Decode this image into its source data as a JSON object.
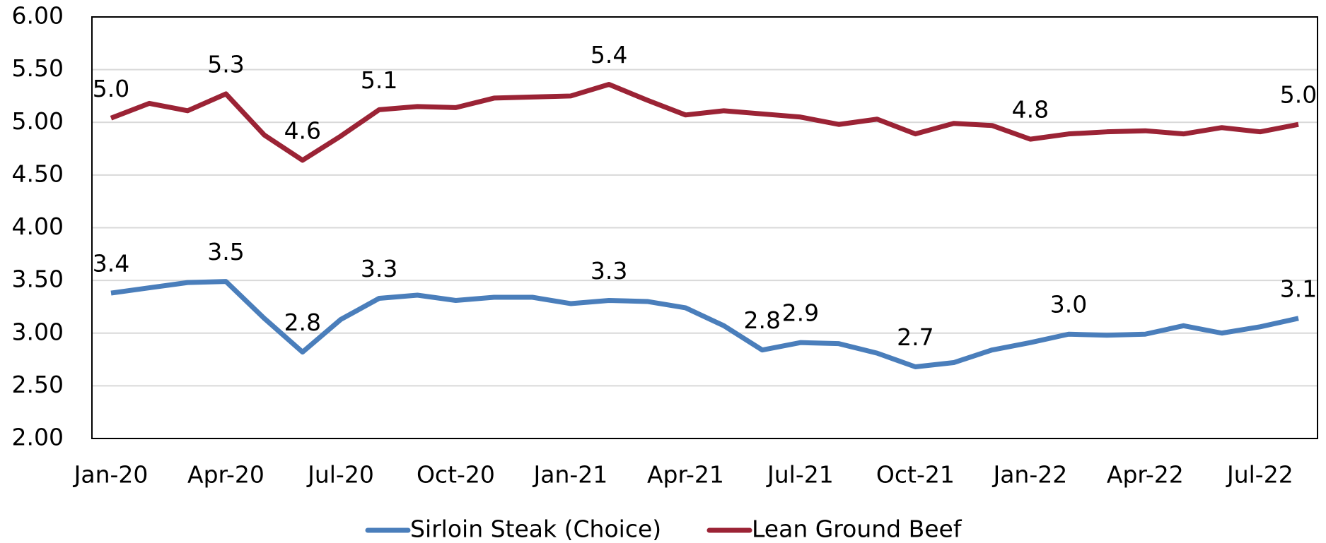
{
  "chart_data": {
    "type": "line",
    "categories": [
      "Jan-20",
      null,
      null,
      "Apr-20",
      null,
      null,
      "Jul-20",
      null,
      null,
      "Oct-20",
      null,
      null,
      "Jan-21",
      null,
      null,
      "Apr-21",
      null,
      null,
      "Jul-21",
      null,
      null,
      "Oct-21",
      null,
      null,
      "Jan-22",
      null,
      null,
      "Apr-22",
      null,
      null,
      "Jul-22",
      null
    ],
    "series": [
      {
        "name": "Sirloin Steak (Choice)",
        "color": "#4a7ebb",
        "values": [
          3.38,
          3.43,
          3.48,
          3.49,
          3.14,
          2.82,
          3.13,
          3.33,
          3.36,
          3.31,
          3.34,
          3.34,
          3.28,
          3.31,
          3.3,
          3.24,
          3.07,
          2.84,
          2.91,
          2.9,
          2.81,
          2.68,
          2.72,
          2.84,
          2.91,
          2.99,
          2.98,
          2.99,
          3.07,
          3.0,
          3.06,
          3.14
        ],
        "value_labels": [
          "3.4",
          null,
          null,
          "3.5",
          null,
          "2.8",
          null,
          "3.3",
          null,
          null,
          null,
          null,
          null,
          "3.3",
          null,
          null,
          null,
          "2.8",
          "2.9",
          null,
          null,
          "2.7",
          null,
          null,
          null,
          "3.0",
          null,
          null,
          null,
          null,
          null,
          "3.1"
        ]
      },
      {
        "name": "Lean Ground Beef",
        "color": "#9b2335",
        "values": [
          5.04,
          5.18,
          5.11,
          5.27,
          4.88,
          4.64,
          4.87,
          5.12,
          5.15,
          5.14,
          5.23,
          5.24,
          5.25,
          5.36,
          5.21,
          5.07,
          5.11,
          5.08,
          5.05,
          4.98,
          5.03,
          4.89,
          4.99,
          4.97,
          4.84,
          4.89,
          4.91,
          4.92,
          4.89,
          4.95,
          4.91,
          4.98
        ],
        "value_labels": [
          "5.0",
          null,
          null,
          "5.3",
          null,
          "4.6",
          null,
          "5.1",
          null,
          null,
          null,
          null,
          null,
          "5.4",
          null,
          null,
          null,
          null,
          null,
          null,
          null,
          null,
          null,
          null,
          "4.8",
          null,
          null,
          null,
          null,
          null,
          null,
          "5.0"
        ]
      }
    ],
    "ylim": [
      2,
      6
    ],
    "yticks": [
      {
        "value": 2,
        "label": "2.00"
      },
      {
        "value": 2.5,
        "label": "2.50"
      },
      {
        "value": 3,
        "label": "3.00"
      },
      {
        "value": 3.5,
        "label": "3.50"
      },
      {
        "value": 4,
        "label": "4.00"
      },
      {
        "value": 4.5,
        "label": "4.50"
      },
      {
        "value": 5,
        "label": "5.00"
      },
      {
        "value": 5.5,
        "label": "5.50"
      },
      {
        "value": 6,
        "label": "6.00"
      }
    ],
    "grid": true,
    "legend": "bottom"
  }
}
